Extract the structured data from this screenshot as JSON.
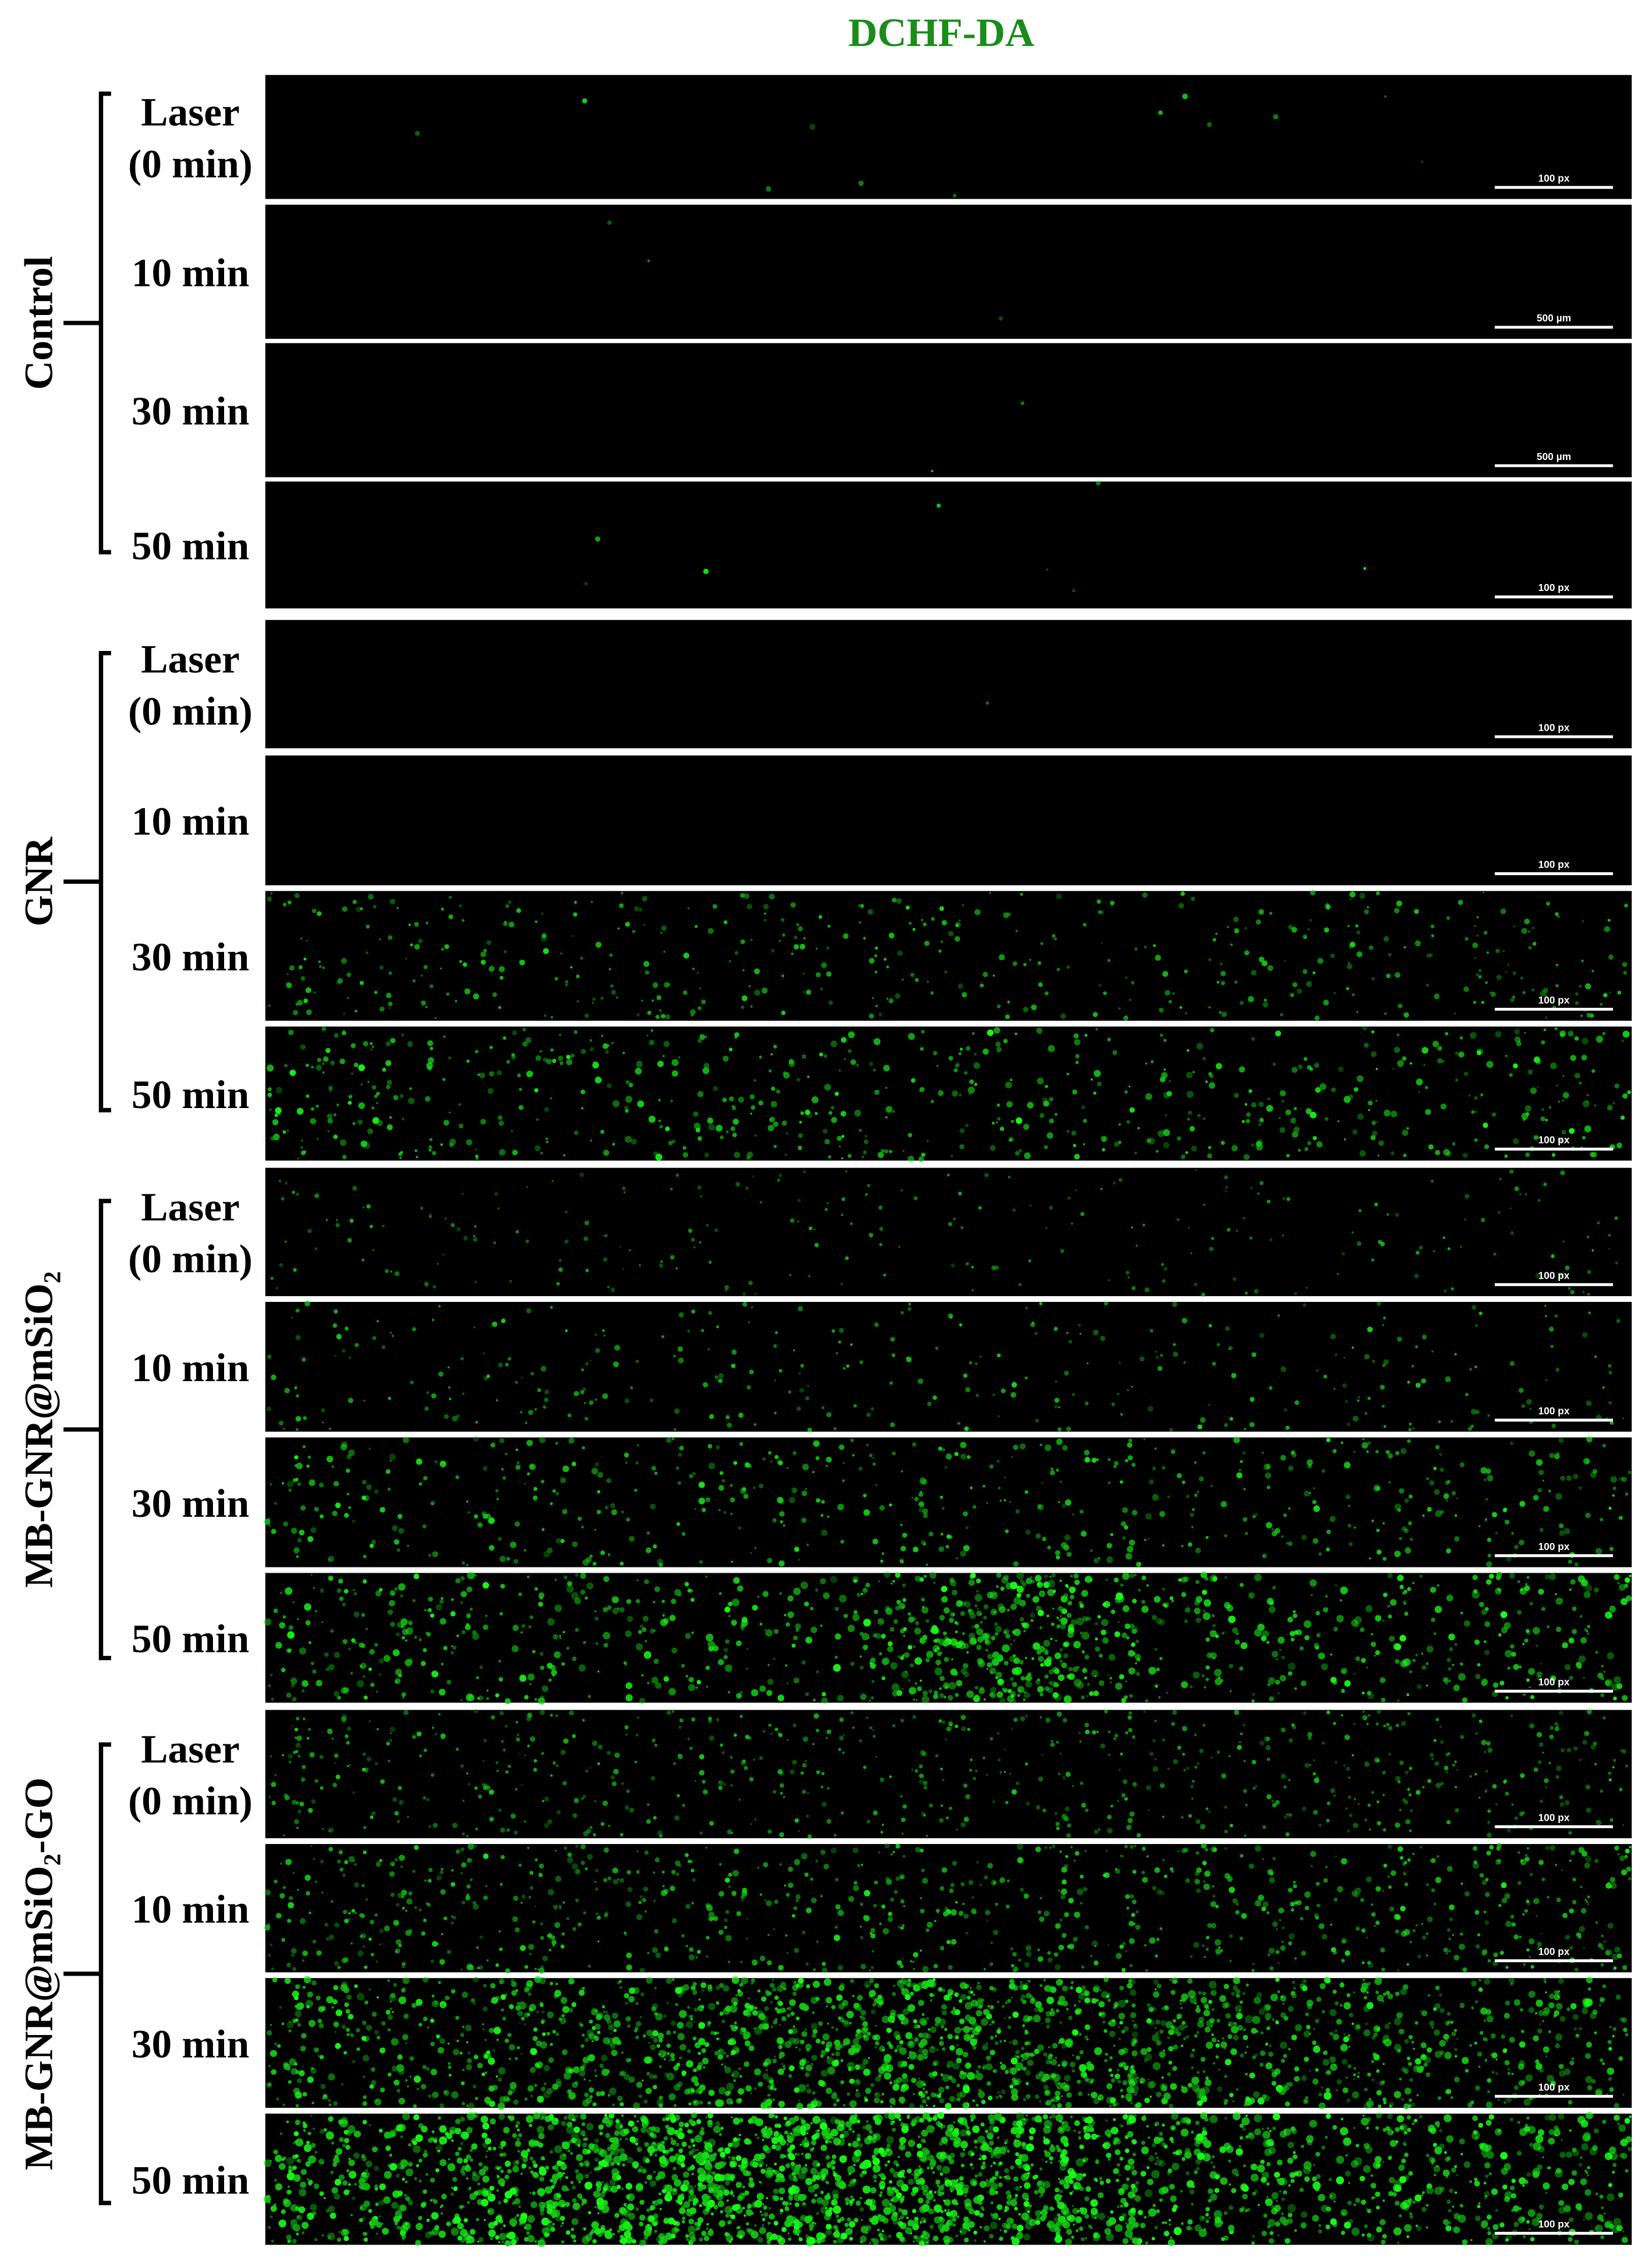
{
  "title": "DCHF-DA",
  "groups": [
    {
      "label": "Control",
      "rows": [
        {
          "label": [
            "Laser",
            "(0 min)"
          ],
          "scale_bar": "100 px"
        },
        {
          "label": [
            "10 min"
          ],
          "scale_bar": "500 µm"
        },
        {
          "label": [
            "30 min"
          ],
          "scale_bar": "500 µm"
        },
        {
          "label": [
            "50 min"
          ],
          "scale_bar": "100 px"
        }
      ]
    },
    {
      "label": "GNR",
      "rows": [
        {
          "label": [
            "Laser",
            "(0 min)"
          ],
          "scale_bar": "100 px"
        },
        {
          "label": [
            "10 min"
          ],
          "scale_bar": "100 px"
        },
        {
          "label": [
            "30 min"
          ],
          "scale_bar": "100 px"
        },
        {
          "label": [
            "50 min"
          ],
          "scale_bar": "100 px"
        }
      ]
    },
    {
      "label": "MB-GNR@mSiO₂",
      "rows": [
        {
          "label": [
            "Laser",
            "(0 min)"
          ],
          "scale_bar": "100 px"
        },
        {
          "label": [
            "10 min"
          ],
          "scale_bar": "100 px"
        },
        {
          "label": [
            "30 min"
          ],
          "scale_bar": "100 px"
        },
        {
          "label": [
            "50 min"
          ],
          "scale_bar": "100 px"
        }
      ]
    },
    {
      "label": "MB-GNR@mSiO₂-GO",
      "rows": [
        {
          "label": [
            "Laser",
            "(0 min)"
          ],
          "scale_bar": "100 px"
        },
        {
          "label": [
            "10 min"
          ],
          "scale_bar": "100 px"
        },
        {
          "label": [
            "30 min"
          ],
          "scale_bar": "100 px"
        },
        {
          "label": [
            "50 min"
          ],
          "scale_bar": "100 px"
        }
      ]
    }
  ]
}
